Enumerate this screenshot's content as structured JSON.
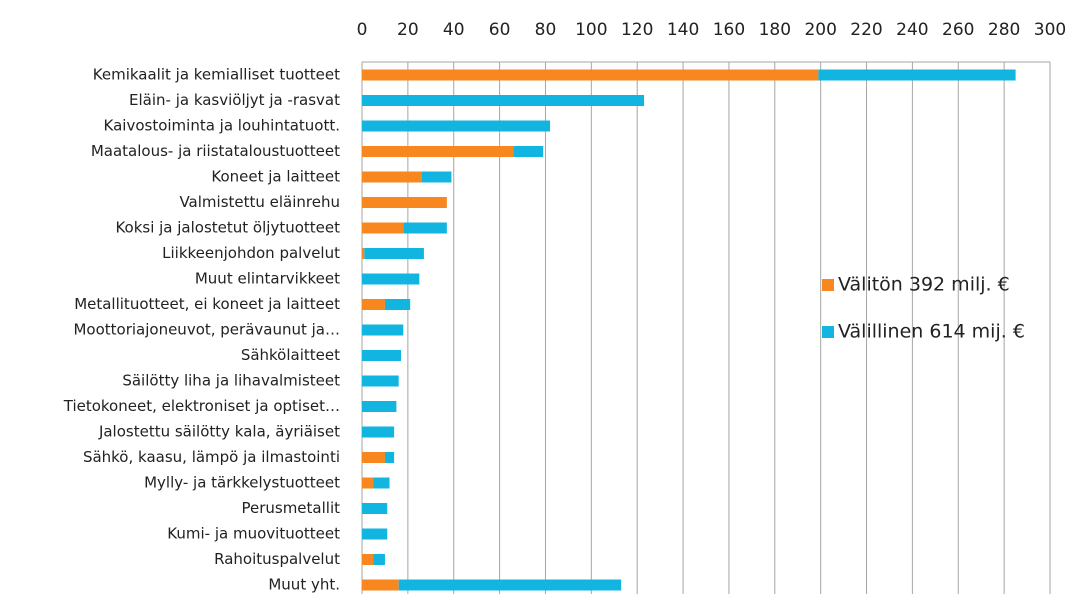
{
  "chart_data": {
    "type": "stacked-barh",
    "categories": [
      "Kemikaalit ja kemialliset tuotteet",
      "Eläin- ja kasviöljyt ja -rasvat",
      "Kaivostoiminta ja louhintatuott.",
      "Maatalous- ja riistataloustuotteet",
      "Koneet ja laitteet",
      "Valmistettu eläinrehu",
      "Koksi ja jalostetut öljytuotteet",
      "Liikkeenjohdon palvelut",
      "Muut elintarvikkeet",
      "Metallituotteet, ei koneet ja laitteet",
      "Moottoriajoneuvot, perävaunut ja…",
      "Sähkölaitteet",
      "Säilötty liha ja lihavalmisteet",
      "Tietokoneet, elektroniset ja optiset…",
      "Jalostettu säilötty kala, äyriäiset",
      "Sähkö, kaasu, lämpö ja ilmastointi",
      "Mylly- ja tärkkelystuotteet",
      "Perusmetallit",
      "Kumi- ja muovituotteet",
      "Rahoituspalvelut",
      "Muut yht."
    ],
    "series": [
      {
        "name": "Välitön 392 milj. €",
        "color": "#f7871e",
        "values": [
          199,
          0,
          0,
          66,
          26,
          37,
          18,
          1,
          0,
          10,
          0,
          0,
          0,
          0,
          0,
          10,
          5,
          0,
          0,
          5,
          16
        ]
      },
      {
        "name": "Välillinen 614 mij. €",
        "color": "#12b5e0",
        "values": [
          86,
          123,
          82,
          13,
          13,
          0,
          19,
          26,
          25,
          11,
          18,
          17,
          16,
          15,
          14,
          4,
          7,
          11,
          11,
          5,
          97
        ]
      }
    ],
    "xlim": [
      0,
      300
    ],
    "xticks": [
      0,
      20,
      40,
      60,
      80,
      100,
      120,
      140,
      160,
      180,
      200,
      220,
      240,
      260,
      280,
      300
    ],
    "grid": true,
    "legend": "right"
  }
}
